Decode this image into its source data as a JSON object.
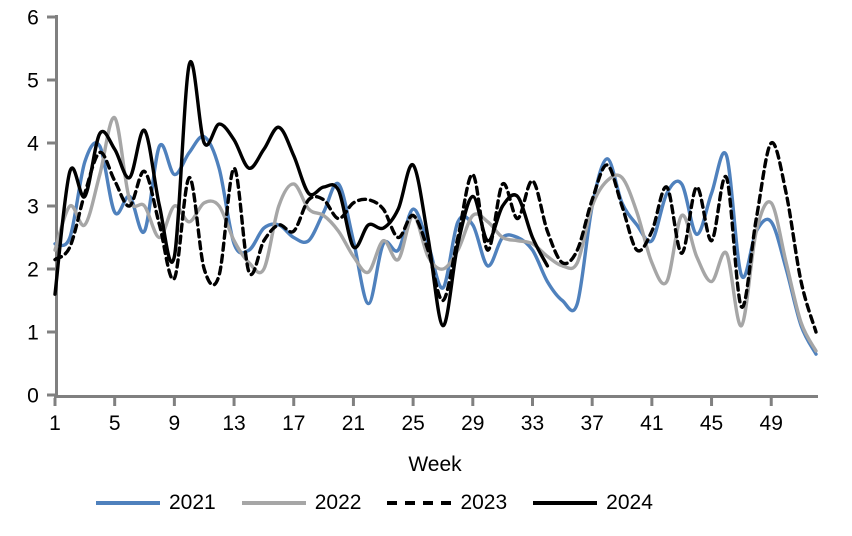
{
  "chart_data": {
    "type": "line",
    "title": "",
    "xlabel": "Week",
    "ylabel": "",
    "x_start": 1,
    "x_end": 52,
    "ylim": [
      0,
      6
    ],
    "y_ticks": [
      0,
      1,
      2,
      3,
      4,
      5,
      6
    ],
    "x_ticks": [
      1,
      5,
      9,
      13,
      17,
      21,
      25,
      29,
      33,
      37,
      41,
      45,
      49
    ],
    "grid": "off",
    "legend_position": "bottom",
    "axis_color": "#808080",
    "text_color": "#000000",
    "line_smoothing": true,
    "series": [
      {
        "name": "2021",
        "color": "#4f81bd",
        "style": "solid",
        "values": [
          2.4,
          2.5,
          3.7,
          3.95,
          2.9,
          3.15,
          2.6,
          3.95,
          3.5,
          3.85,
          4.1,
          3.6,
          2.4,
          2.3,
          2.65,
          2.7,
          2.5,
          2.45,
          2.9,
          3.35,
          2.45,
          1.45,
          2.4,
          2.3,
          2.95,
          2.4,
          1.7,
          2.75,
          2.7,
          2.05,
          2.5,
          2.5,
          2.3,
          1.8,
          1.5,
          1.45,
          3.0,
          3.75,
          3.05,
          2.7,
          2.45,
          3.2,
          3.35,
          2.55,
          3.2,
          3.8,
          1.9,
          2.6,
          2.75,
          2.0,
          1.1,
          0.65
        ]
      },
      {
        "name": "2022",
        "color": "#a6a6a6",
        "style": "solid",
        "values": [
          2.3,
          3.0,
          2.7,
          3.5,
          4.4,
          3.1,
          3.0,
          2.5,
          3.0,
          2.75,
          3.05,
          3.0,
          2.45,
          2.1,
          2.0,
          3.0,
          3.35,
          2.95,
          2.85,
          2.6,
          2.2,
          1.95,
          2.45,
          2.15,
          2.85,
          2.2,
          2.0,
          2.3,
          2.85,
          2.75,
          2.5,
          2.45,
          2.4,
          2.2,
          2.05,
          2.1,
          3.0,
          3.4,
          3.45,
          2.9,
          2.1,
          1.8,
          2.85,
          2.2,
          1.8,
          2.25,
          1.1,
          2.6,
          3.05,
          2.1,
          1.15,
          0.7
        ]
      },
      {
        "name": "2023",
        "color": "#000000",
        "style": "dashed",
        "values": [
          2.15,
          2.35,
          3.2,
          3.85,
          3.4,
          3.0,
          3.55,
          2.7,
          1.85,
          3.45,
          2.0,
          1.9,
          3.6,
          1.95,
          2.45,
          2.7,
          2.6,
          3.1,
          3.1,
          2.8,
          3.05,
          3.1,
          2.95,
          2.5,
          2.85,
          2.3,
          1.5,
          2.5,
          3.5,
          2.3,
          3.35,
          2.8,
          3.4,
          2.6,
          2.1,
          2.3,
          3.1,
          3.65,
          3.0,
          2.3,
          2.6,
          3.3,
          2.25,
          3.3,
          2.45,
          3.45,
          1.4,
          2.8,
          4.0,
          3.2,
          1.8,
          1.0
        ]
      },
      {
        "name": "2024",
        "color": "#000000",
        "style": "solid",
        "values": [
          1.6,
          3.55,
          3.15,
          4.15,
          3.9,
          3.45,
          4.2,
          3.0,
          2.2,
          5.25,
          4.0,
          4.3,
          4.05,
          3.6,
          3.9,
          4.25,
          3.8,
          3.2,
          3.3,
          3.25,
          2.35,
          2.7,
          2.65,
          2.95,
          3.65,
          2.5,
          1.1,
          2.4,
          3.15,
          2.45,
          3.0,
          3.15,
          2.5,
          2.05
        ]
      }
    ]
  }
}
